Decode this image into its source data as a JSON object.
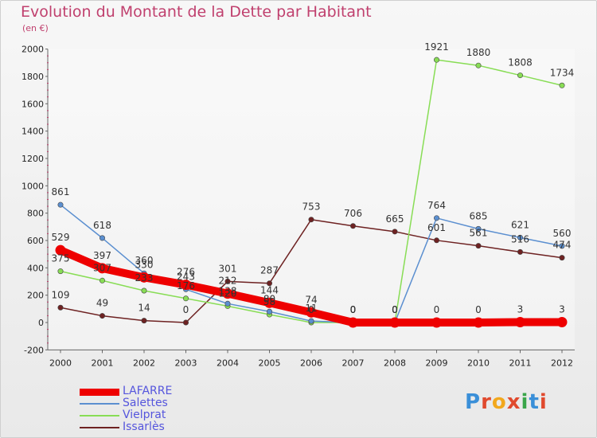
{
  "header": {
    "title": "Evolution du Montant de la Dette par Habitant",
    "unit": "(en €)"
  },
  "logo": {
    "text": "Proxiti",
    "letters": [
      {
        "ch": "P",
        "color": "#3a8fd8"
      },
      {
        "ch": "r",
        "color": "#e04a2e"
      },
      {
        "ch": "o",
        "color": "#f2a81d"
      },
      {
        "ch": "x",
        "color": "#e04a2e"
      },
      {
        "ch": "i",
        "color": "#3aa64a"
      },
      {
        "ch": "t",
        "color": "#3a8fd8"
      },
      {
        "ch": "i",
        "color": "#e04a2e"
      }
    ]
  },
  "chart_data": {
    "type": "line",
    "categories": [
      "2000",
      "2001",
      "2002",
      "2003",
      "2004",
      "2005",
      "2006",
      "2007",
      "2008",
      "2009",
      "2010",
      "2011",
      "2012"
    ],
    "ylim": [
      -200,
      2000
    ],
    "yticks": [
      -200,
      0,
      200,
      400,
      600,
      800,
      1000,
      1200,
      1400,
      1600,
      1800,
      2000
    ],
    "series": [
      {
        "name": "LAFARRE",
        "color": "#ee0000",
        "values": [
          529,
          397,
          330,
          276,
          212,
          144,
          74,
          0,
          0,
          0,
          0,
          3,
          3
        ]
      },
      {
        "name": "Salettes",
        "color": "#5b8fd0",
        "values": [
          861,
          618,
          360,
          243,
          138,
          80,
          11,
          0,
          0,
          764,
          685,
          621,
          560
        ]
      },
      {
        "name": "Vielprat",
        "color": "#88dd55",
        "values": [
          375,
          307,
          233,
          176,
          120,
          58,
          0,
          0,
          0,
          1921,
          1880,
          1808,
          1734
        ]
      },
      {
        "name": "Issarlès",
        "color": "#6e2222",
        "values": [
          109,
          49,
          14,
          0,
          301,
          287,
          753,
          706,
          665,
          601,
          561,
          516,
          474
        ]
      }
    ]
  }
}
